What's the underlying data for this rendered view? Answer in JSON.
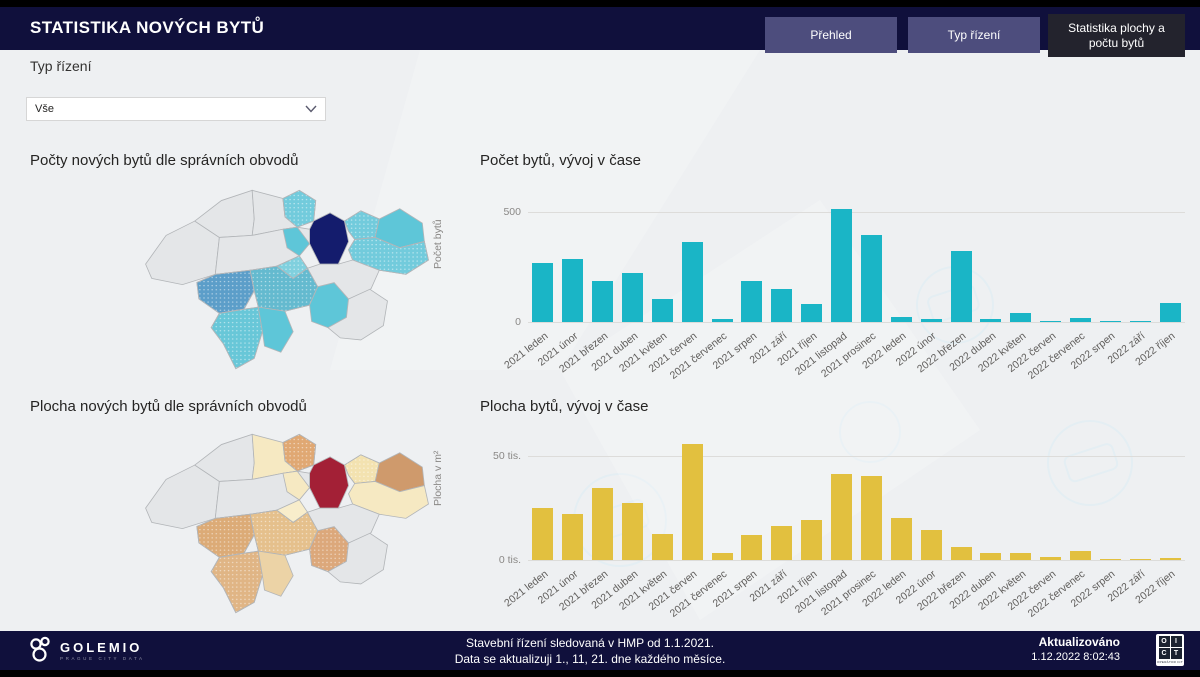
{
  "header": {
    "title": "STATISTIKA NOVÝCH BYTŮ",
    "tabs": [
      {
        "label": "Přehled",
        "active": false
      },
      {
        "label": "Typ řízení",
        "active": false
      },
      {
        "label": "Statistika plochy a počtu bytů",
        "active": true
      }
    ]
  },
  "filter": {
    "label": "Typ řízení",
    "value": "Vše"
  },
  "colors": {
    "header_bg": "#10103c",
    "tab_inactive": "#4d4d7d",
    "tab_active": "#23232d",
    "bar_teal": "#1ab5c6",
    "bar_yellow": "#e2c03f",
    "map_navy": "#141c6d",
    "map_red": "#a32036",
    "region_gray": "#e4e6e8"
  },
  "maps": {
    "counts": {
      "title": "Počty nových bytů dle správních obvodů",
      "region_fills": [
        {
          "c": "#e4e6e8",
          "d": false
        },
        {
          "c": "#e4e6e8",
          "d": false
        },
        {
          "c": "#e4e6e8",
          "d": false
        },
        {
          "c": "#72cbdc",
          "d": true
        },
        {
          "c": "#141c6d",
          "d": false
        },
        {
          "c": "#72cbdc",
          "d": true
        },
        {
          "c": "#5ec6d8",
          "d": false
        },
        {
          "c": "#72cbdc",
          "d": true
        },
        {
          "c": "#e4e6e8",
          "d": false
        },
        {
          "c": "#5ec6d8",
          "d": false
        },
        {
          "c": "#80d0de",
          "d": true
        },
        {
          "c": "#5c9ec9",
          "d": true
        },
        {
          "c": "#64bacf",
          "d": true
        },
        {
          "c": "#68c7d8",
          "d": true
        },
        {
          "c": "#5ec6d8",
          "d": false
        },
        {
          "c": "#5ec6d8",
          "d": false
        },
        {
          "c": "#e4e6e8",
          "d": false
        },
        {
          "c": "#e4e6e8",
          "d": false
        }
      ]
    },
    "area": {
      "title": "Plocha nových bytů dle správních obvodů",
      "region_fills": [
        {
          "c": "#e4e6e8",
          "d": false
        },
        {
          "c": "#e4e6e8",
          "d": false
        },
        {
          "c": "#f6e9c2",
          "d": false
        },
        {
          "c": "#e0a873",
          "d": true
        },
        {
          "c": "#a32036",
          "d": false
        },
        {
          "c": "#f3e2b0",
          "d": true
        },
        {
          "c": "#cf9a6c",
          "d": false
        },
        {
          "c": "#f6e9c2",
          "d": false
        },
        {
          "c": "#e4e6e8",
          "d": false
        },
        {
          "c": "#f6e9c2",
          "d": false
        },
        {
          "c": "#f8edcb",
          "d": false
        },
        {
          "c": "#dcab77",
          "d": true
        },
        {
          "c": "#e5c08c",
          "d": true
        },
        {
          "c": "#e0b585",
          "d": true
        },
        {
          "c": "#ecd3a6",
          "d": false
        },
        {
          "c": "#dca87b",
          "d": true
        },
        {
          "c": "#e4e6e8",
          "d": false
        },
        {
          "c": "#e4e6e8",
          "d": false
        }
      ]
    }
  },
  "chart_data": [
    {
      "type": "bar",
      "title": "Počet bytů, vývoj v čase",
      "ylabel": "Počet bytů",
      "bar_color": "#1ab5c6",
      "ylim": [
        0,
        540
      ],
      "yticks": [
        {
          "value": 0,
          "label": "0"
        },
        {
          "value": 500,
          "label": "500"
        }
      ],
      "grid": true,
      "legend": "none",
      "categories": [
        "2021 leden",
        "2021 únor",
        "2021 březen",
        "2021 duben",
        "2021 květen",
        "2021 červen",
        "2021 červenec",
        "2021 srpen",
        "2021 září",
        "2021 říjen",
        "2021 listopad",
        "2021 prosinec",
        "2022 leden",
        "2022 únor",
        "2022 březen",
        "2022 duben",
        "2022 květen",
        "2022 červen",
        "2022 červenec",
        "2022 srpen",
        "2022 září",
        "2022 říjen"
      ],
      "values": [
        266,
        284,
        184,
        224,
        103,
        361,
        15,
        187,
        148,
        82,
        514,
        396,
        22,
        13,
        322,
        15,
        43,
        6,
        19,
        4,
        6,
        87
      ]
    },
    {
      "type": "bar",
      "title": "Plocha bytů, vývoj v čase",
      "ylabel": "Plocha v m²",
      "bar_color": "#e2c03f",
      "ylim": [
        0,
        57700
      ],
      "yticks": [
        {
          "value": 0,
          "label": "0 tis."
        },
        {
          "value": 50000,
          "label": "50 tis."
        }
      ],
      "grid": true,
      "legend": "none",
      "categories": [
        "2021 leden",
        "2021 únor",
        "2021 březen",
        "2021 duben",
        "2021 květen",
        "2021 červen",
        "2021 červenec",
        "2021 srpen",
        "2021 září",
        "2021 říjen",
        "2021 listopad",
        "2021 prosinec",
        "2022 leden",
        "2022 únor",
        "2022 březen",
        "2022 duben",
        "2022 květen",
        "2022 červen",
        "2022 červenec",
        "2022 srpen",
        "2022 září",
        "2022 říjen"
      ],
      "values": [
        25000,
        22000,
        34500,
        27500,
        12500,
        56000,
        3200,
        11800,
        16300,
        19200,
        41400,
        40300,
        20400,
        14500,
        6200,
        3500,
        3500,
        1400,
        4100,
        500,
        500,
        1000
      ]
    }
  ],
  "footer": {
    "logo_text": "GOLEMIO",
    "logo_sub": "PRAGUE CITY DATA",
    "note_line1": "Stavební řízení sledovaná v HMP od 1.1.2021.",
    "note_line2": "Data se aktualizuji 1., 11, 21. dne každého měsíce.",
    "updated_label": "Aktualizováno",
    "updated_value": "1.12.2022 8:02:43",
    "oict_letters": [
      "O",
      "I",
      "C",
      "T"
    ],
    "oict_sub": "OPERÁTOR ICT"
  }
}
